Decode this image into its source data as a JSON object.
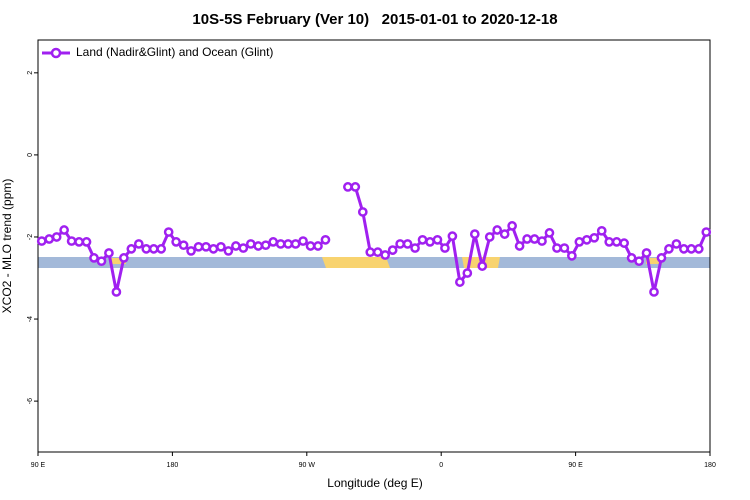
{
  "chart_data": {
    "type": "line",
    "title": "10S-5S February (Ver 10)   2015-01-01 to 2020-12-18",
    "x_label": "Longitude (deg E)",
    "y_label": "XCO2 - MLO trend (ppm)",
    "xlim": [
      90,
      540
    ],
    "ylim": [
      -7.24,
      2.8
    ],
    "xticks": [
      {
        "value": 90,
        "label": "90 E"
      },
      180,
      {
        "value": 270,
        "label": "90 W"
      },
      {
        "value": 360,
        "label": "0"
      },
      {
        "value": 450,
        "label": "90 E"
      },
      {
        "value": 540,
        "label": "180"
      }
    ],
    "yticks": [
      -6,
      -4,
      -2,
      0,
      2
    ],
    "legend": "top-left",
    "x": [
      92.5,
      97.5,
      102.5,
      107.5,
      112.5,
      117.5,
      122.5,
      127.5,
      132.5,
      137.5,
      142.5,
      147.5,
      152.5,
      157.5,
      162.5,
      167.5,
      172.5,
      177.5,
      182.5,
      187.5,
      192.5,
      197.5,
      202.5,
      207.5,
      212.5,
      217.5,
      222.5,
      227.5,
      232.5,
      237.5,
      242.5,
      247.5,
      252.5,
      257.5,
      262.5,
      267.5,
      272.5,
      277.5,
      282.5,
      287.5,
      292.5,
      297.5,
      302.5,
      307.5,
      312.5,
      317.5,
      322.5,
      327.5,
      332.5,
      337.5,
      342.5,
      347.5,
      352.5,
      357.5,
      362.5,
      367.5,
      372.5,
      377.5,
      382.5,
      387.5,
      392.5,
      397.5,
      402.5,
      407.5,
      412.5,
      417.5,
      422.5,
      427.5,
      432.5,
      437.5,
      442.5,
      447.5,
      452.5,
      457.5,
      462.5,
      467.5,
      472.5,
      477.5,
      482.5,
      487.5,
      492.5,
      497.5,
      502.5,
      507.5,
      512.5,
      517.5,
      522.5,
      527.5,
      532.5,
      537.5
    ],
    "series": [
      {
        "name": "Land (Nadir&Glint) and Ocean (Glint)",
        "color": "#a020f0",
        "values": [
          -2.1,
          -2.05,
          -2.0,
          -1.83,
          -2.1,
          -2.12,
          -2.12,
          -2.51,
          -2.59,
          -2.39,
          -3.34,
          -2.51,
          -2.29,
          -2.17,
          -2.29,
          -2.29,
          -2.29,
          -1.88,
          -2.12,
          -2.2,
          -2.34,
          -2.24,
          -2.24,
          -2.29,
          -2.24,
          -2.34,
          -2.22,
          -2.27,
          -2.17,
          -2.22,
          -2.2,
          -2.12,
          -2.17,
          -2.17,
          -2.17,
          -2.1,
          -2.22,
          -2.22,
          -2.07,
          null,
          null,
          -0.78,
          -0.78,
          -1.39,
          -2.37,
          -2.37,
          -2.44,
          -2.32,
          -2.17,
          -2.17,
          -2.27,
          -2.07,
          -2.12,
          -2.07,
          -2.27,
          -1.98,
          -3.1,
          -2.88,
          -1.93,
          -2.71,
          -2.0,
          -1.83,
          -1.93,
          -1.73,
          -2.22,
          -2.05,
          -2.05,
          -2.1,
          -1.9,
          -2.27,
          -2.27,
          -2.46,
          -2.12,
          -2.07,
          -2.02,
          -1.85,
          -2.12,
          -2.12,
          -2.15,
          -2.51,
          -2.59,
          -2.39,
          -3.34,
          -2.51,
          -2.29,
          -2.17,
          -2.29,
          -2.29,
          -2.29,
          -1.88
        ]
      }
    ]
  }
}
